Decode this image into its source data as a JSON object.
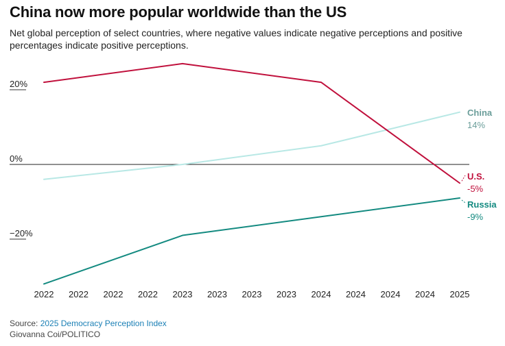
{
  "chart_data": {
    "type": "line",
    "title": "China now more popular worldwide than the US",
    "subtitle": "Net global perception of select countries, where negative values indicate negative perceptions and positive percentages indicate positive perceptions.",
    "categories": [
      "2022",
      "2022",
      "2022",
      "2022",
      "2023",
      "2023",
      "2023",
      "2023",
      "2024",
      "2024",
      "2024",
      "2024",
      "2025"
    ],
    "y_ticks": [
      "20%",
      "0%",
      "−20%"
    ],
    "y_tick_values": [
      20,
      0,
      -20
    ],
    "ylim": [
      -33,
      27
    ],
    "grid": false,
    "series": [
      {
        "name": "China",
        "color": "#b8e8e5",
        "label_color": "#6b9e9a",
        "value_label": "14%",
        "points": [
          [
            0,
            -4
          ],
          [
            4,
            0
          ],
          [
            8,
            5
          ],
          [
            12,
            14
          ]
        ]
      },
      {
        "name": "U.S.",
        "color": "#c0103c",
        "label_color": "#c0103c",
        "value_label": "-5%",
        "points": [
          [
            0,
            22
          ],
          [
            4,
            27
          ],
          [
            8,
            22
          ],
          [
            12,
            -5
          ]
        ]
      },
      {
        "name": "Russia",
        "color": "#138a80",
        "label_color": "#138a80",
        "value_label": "-9%",
        "points": [
          [
            0,
            -32
          ],
          [
            4,
            -19
          ],
          [
            8,
            -14
          ],
          [
            12,
            -9
          ]
        ]
      }
    ]
  },
  "footer": {
    "source_prefix": "Source: ",
    "source_link": "2025 Democracy Perception Index",
    "credit": "Giovanna Coi/POLITICO"
  }
}
